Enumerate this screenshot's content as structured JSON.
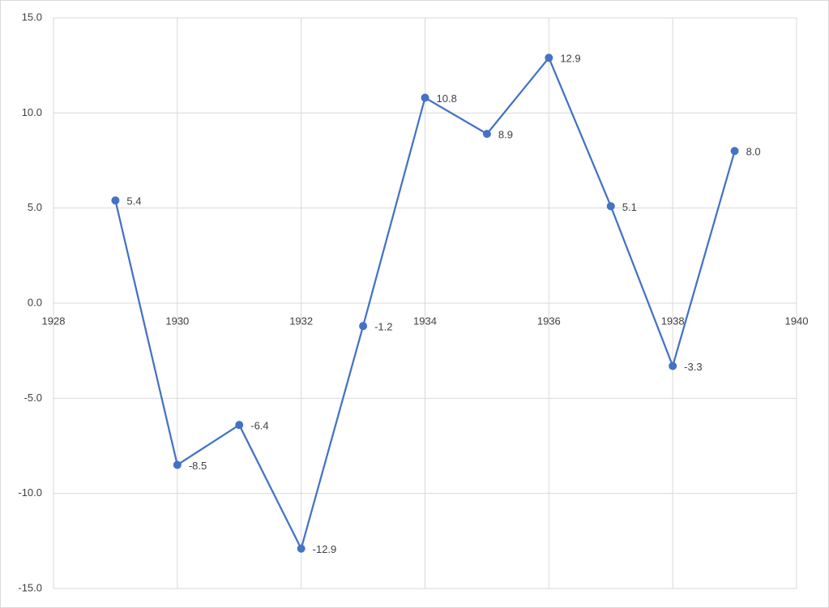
{
  "chart_data": {
    "type": "line",
    "x": [
      1929,
      1930,
      1931,
      1932,
      1933,
      1934,
      1935,
      1936,
      1937,
      1938,
      1939
    ],
    "values": [
      5.4,
      -8.5,
      -6.4,
      -12.9,
      -1.2,
      10.8,
      8.9,
      12.9,
      5.1,
      -3.3,
      8.0
    ],
    "value_labels": [
      "5.4",
      "-8.5",
      "-6.4",
      "-12.9",
      "-1.2",
      "10.8",
      "8.9",
      "12.9",
      "5.1",
      "-3.3",
      "8.0"
    ],
    "color": "#4472c4",
    "xlim": [
      1928,
      1940
    ],
    "xticks": [
      1928,
      1930,
      1932,
      1934,
      1936,
      1938,
      1940
    ],
    "ylim": [
      -15,
      15
    ],
    "yticks": [
      {
        "value": -15,
        "label": "-15.0"
      },
      {
        "value": -10,
        "label": "-10.0"
      },
      {
        "value": -5,
        "label": "-5.0"
      },
      {
        "value": 0,
        "label": "0.0"
      },
      {
        "value": 5,
        "label": "5.0"
      },
      {
        "value": 10,
        "label": "10.0"
      },
      {
        "value": 15,
        "label": "15.0"
      }
    ],
    "grid": true
  }
}
